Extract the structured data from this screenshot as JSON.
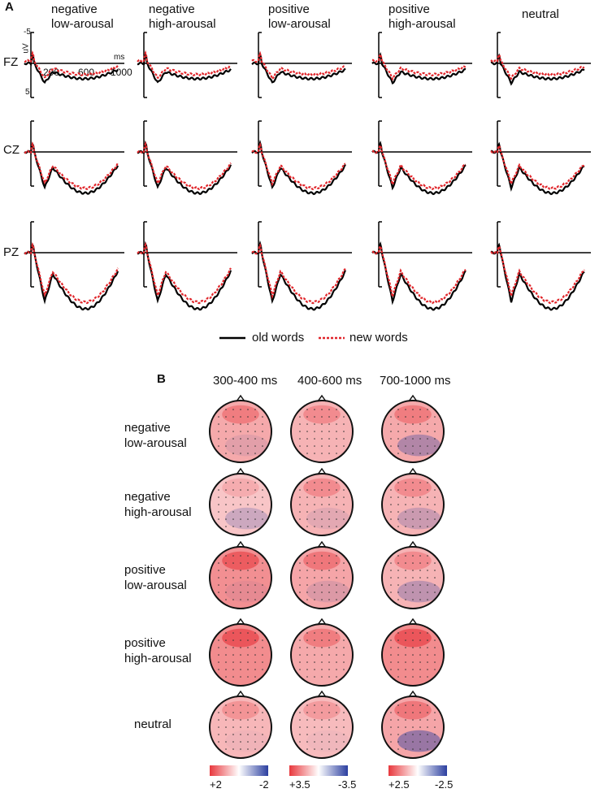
{
  "panel_a": {
    "label": "A",
    "conditions": [
      {
        "line1": "negative",
        "line2": "low-arousal"
      },
      {
        "line1": "negative",
        "line2": "high-arousal"
      },
      {
        "line1": "positive",
        "line2": "low-arousal"
      },
      {
        "line1": "positive",
        "line2": "high-arousal"
      },
      {
        "line1": "neutral",
        "line2": ""
      }
    ],
    "electrodes": [
      "FZ",
      "CZ",
      "PZ"
    ],
    "y_axis": {
      "unit": "uV",
      "top_tick": "-5",
      "bottom_tick": "5"
    },
    "x_axis": {
      "unit": "ms",
      "ticks": [
        "200",
        "600",
        "1000"
      ]
    },
    "legend": {
      "old": "old words",
      "new": "new words"
    },
    "colors": {
      "old": "#000000",
      "new": "#e0262b"
    }
  },
  "panel_b": {
    "label": "B",
    "time_windows": [
      "300-400 ms",
      "400-600 ms",
      "700-1000 ms"
    ],
    "conditions": [
      {
        "line1": "negative",
        "line2": "low-arousal"
      },
      {
        "line1": "negative",
        "line2": "high-arousal"
      },
      {
        "line1": "positive",
        "line2": "low-arousal"
      },
      {
        "line1": "positive",
        "line2": "high-arousal"
      },
      {
        "line1": "neutral",
        "line2": ""
      }
    ],
    "colorbars": [
      {
        "min": "+2",
        "max": "-2"
      },
      {
        "min": "+3.5",
        "max": "-3.5"
      },
      {
        "min": "+2.5",
        "max": "-2.5"
      }
    ],
    "colors": {
      "positive": "#e8383d",
      "negative": "#2b3fa0",
      "zero": "#ffffff"
    }
  }
}
